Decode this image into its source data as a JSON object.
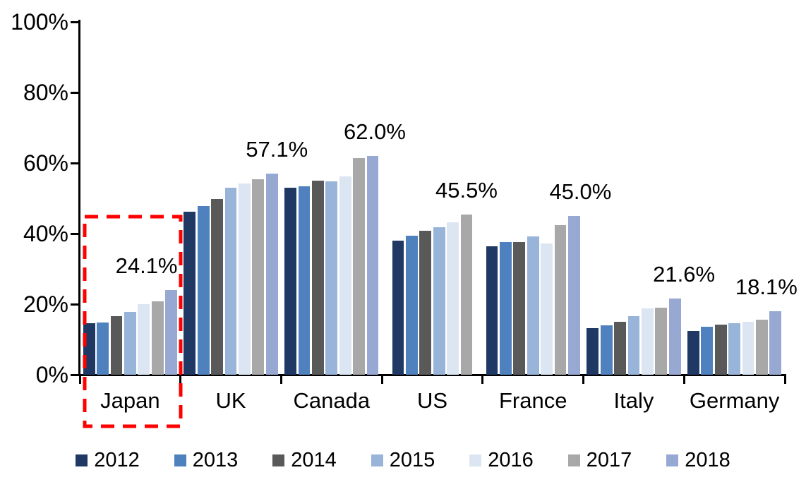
{
  "chart_data": {
    "type": "bar",
    "title": "",
    "xlabel": "",
    "ylabel": "",
    "categories": [
      "Japan",
      "UK",
      "Canada",
      "US",
      "France",
      "Italy",
      "Germany"
    ],
    "series": [
      {
        "name": "2012",
        "color": "#1F3864",
        "values": [
          14.7,
          46.3,
          53.0,
          38.0,
          36.5,
          13.2,
          12.4
        ]
      },
      {
        "name": "2013",
        "color": "#4E81BD",
        "values": [
          14.9,
          47.8,
          53.4,
          39.5,
          37.7,
          14.0,
          13.7
        ]
      },
      {
        "name": "2014",
        "color": "#595959",
        "values": [
          16.7,
          49.8,
          55.0,
          40.9,
          37.6,
          15.0,
          14.2
        ]
      },
      {
        "name": "2015",
        "color": "#98B4D9",
        "values": [
          17.9,
          53.0,
          54.8,
          41.8,
          39.2,
          16.6,
          14.6
        ]
      },
      {
        "name": "2016",
        "color": "#DCE6F2",
        "values": [
          20.1,
          54.2,
          56.2,
          43.3,
          37.3,
          18.8,
          15.0
        ]
      },
      {
        "name": "2017",
        "color": "#A8A8A8",
        "values": [
          20.9,
          55.5,
          61.5,
          45.5,
          42.4,
          19.0,
          15.6
        ]
      },
      {
        "name": "2018",
        "color": "#97A9D2",
        "values": [
          24.1,
          57.1,
          62.0,
          null,
          45.0,
          21.6,
          18.1
        ]
      }
    ],
    "data_labels": [
      {
        "category": "Japan",
        "text": "24.1%",
        "dx": -35
      },
      {
        "category": "UK",
        "text": "57.1%",
        "dx": 7
      },
      {
        "category": "Canada",
        "text": "62.0%",
        "dx": 3
      },
      {
        "category": "US",
        "text": "45.5%",
        "dx": 0
      },
      {
        "category": "France",
        "text": "45.0%",
        "dx": 9
      },
      {
        "category": "Italy",
        "text": "21.6%",
        "dx": 13
      },
      {
        "category": "Germany",
        "text": "18.1%",
        "dx": -13
      }
    ],
    "y_axis": {
      "min": 0,
      "max": 100,
      "tick_labels": [
        "0%",
        "20%",
        "40%",
        "60%",
        "80%",
        "100%"
      ],
      "tick_step": 20
    },
    "grid": false,
    "legend_position": "bottom",
    "legend_entries": [
      "2012",
      "2013",
      "2014",
      "2015",
      "2016",
      "2017",
      "2018"
    ],
    "annotation": {
      "type": "dashed-box",
      "target_category": "Japan",
      "color": "#FF0000"
    }
  }
}
